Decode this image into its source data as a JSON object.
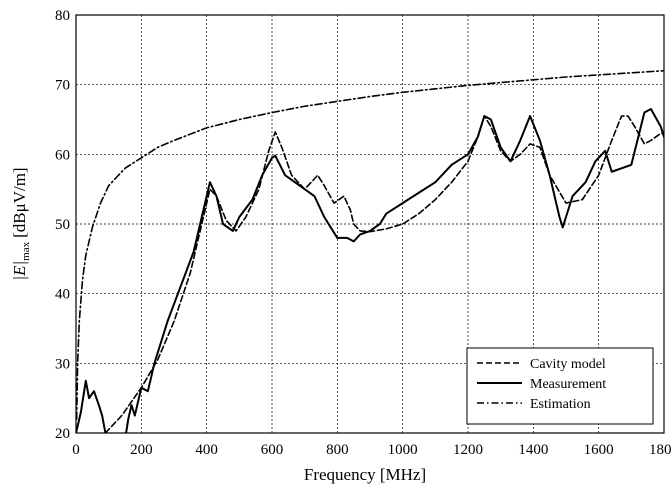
{
  "chart_data": {
    "type": "line",
    "xlabel": "Frequency [MHz]",
    "ylabel_main": "|E|",
    "ylabel_sub": "max",
    "ylabel_unit": "[dBμV/m]",
    "xlim": [
      0,
      1800
    ],
    "ylim": [
      20,
      80
    ],
    "xticks": [
      0,
      200,
      400,
      600,
      800,
      1000,
      1200,
      1400,
      1600,
      1800
    ],
    "yticks": [
      20,
      30,
      40,
      50,
      60,
      70,
      80
    ],
    "grid": true,
    "legend_position": "bottom-right",
    "series": [
      {
        "name": "Cavity model",
        "style": "dashed",
        "x": [
          90,
          140,
          200,
          250,
          300,
          350,
          390,
          410,
          430,
          460,
          490,
          520,
          560,
          590,
          610,
          630,
          660,
          700,
          740,
          760,
          790,
          820,
          840,
          850,
          870,
          900,
          950,
          1000,
          1050,
          1100,
          1150,
          1200,
          1230,
          1250,
          1270,
          1300,
          1330,
          1360,
          1390,
          1420,
          1450,
          1500,
          1550,
          1600,
          1640,
          1670,
          1690,
          1710,
          1740,
          1760,
          1790,
          1800
        ],
        "y": [
          20,
          22.5,
          26.5,
          30.5,
          36,
          43,
          51,
          55,
          54,
          50.5,
          49,
          51,
          55,
          60.5,
          63.2,
          61,
          57,
          55,
          57,
          55.5,
          53,
          54,
          52,
          50,
          49,
          48.9,
          49.3,
          50,
          51.5,
          53.5,
          56,
          59,
          62.5,
          65.5,
          64,
          60.5,
          59,
          60,
          61.5,
          61,
          57,
          53,
          53.5,
          57,
          62,
          65.5,
          65.5,
          64,
          61.5,
          62,
          63,
          63
        ]
      },
      {
        "name": "Measurement",
        "style": "solid",
        "x": [
          0,
          15,
          30,
          40,
          55,
          70,
          80,
          90,
          100,
          115,
          130,
          150,
          160,
          170,
          180,
          200,
          220,
          240,
          280,
          320,
          360,
          390,
          410,
          430,
          450,
          480,
          500,
          540,
          570,
          600,
          610,
          640,
          670,
          700,
          730,
          760,
          800,
          830,
          850,
          870,
          900,
          930,
          950,
          1000,
          1050,
          1100,
          1150,
          1200,
          1230,
          1250,
          1270,
          1300,
          1330,
          1360,
          1390,
          1420,
          1450,
          1480,
          1490,
          1520,
          1560,
          1590,
          1620,
          1640,
          1670,
          1700,
          1740,
          1760,
          1790,
          1800
        ],
        "y": [
          20,
          23,
          27.5,
          25,
          26,
          24,
          22.5,
          20,
          17,
          16,
          17,
          19,
          22,
          24,
          22.5,
          26.5,
          26,
          30,
          36,
          41,
          46,
          52,
          56,
          54,
          50,
          49,
          51,
          53.5,
          57,
          59.5,
          59.8,
          57,
          56,
          55,
          54,
          51,
          48,
          48,
          47.5,
          48.5,
          49,
          50,
          51.5,
          53,
          54.5,
          56,
          58.5,
          60,
          62.5,
          65.5,
          65,
          61,
          59,
          62,
          65.5,
          62,
          57,
          51,
          49.5,
          54,
          56,
          59,
          60.5,
          57.5,
          58,
          58.5,
          66,
          66.5,
          64,
          62.5
        ]
      },
      {
        "name": "Estimation",
        "style": "dash-dot",
        "x": [
          2,
          5,
          10,
          20,
          30,
          50,
          75,
          100,
          150,
          200,
          250,
          300,
          400,
          500,
          600,
          700,
          800,
          900,
          1000,
          1100,
          1200,
          1300,
          1400,
          1500,
          1600,
          1700,
          1800
        ],
        "y": [
          22,
          30,
          36,
          42,
          45.5,
          49.5,
          53,
          55.5,
          58,
          59.5,
          61,
          62,
          63.8,
          65,
          66,
          66.9,
          67.6,
          68.3,
          68.9,
          69.4,
          69.9,
          70.3,
          70.7,
          71.1,
          71.4,
          71.7,
          72
        ]
      }
    ]
  }
}
